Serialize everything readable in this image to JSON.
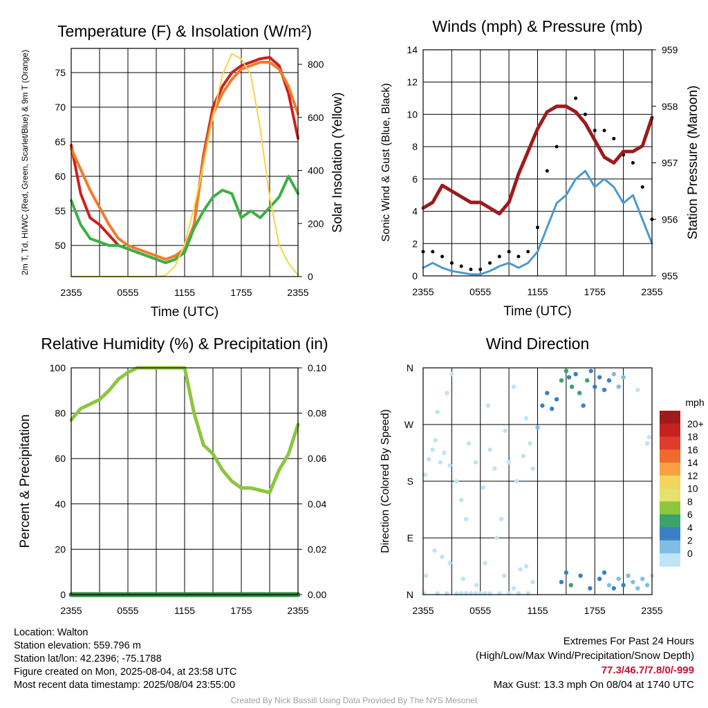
{
  "colors": {
    "red": "#cc1f1f",
    "orange": "#f07c2a",
    "green": "#3cb044",
    "yellow": "#f7d34a",
    "maroon": "#9e1b1b",
    "sonic": "#4b98d2",
    "gust": "#000000",
    "rh": "#8cc63f",
    "precip": "#2e8b3e"
  },
  "chart_data": [
    {
      "type": "line",
      "title": "Temperature (F) & Insolation (W/m²)",
      "xlabel": "Time (UTC)",
      "ylabel": "2m T, Td, HI/WC (Red, Green, Scarlet/Blue) & 9m T (Orange)",
      "y2label": "Solar Insolation (Yellow)",
      "x_ticks": [
        "2355",
        "0555",
        "1155",
        "1755",
        "2355"
      ],
      "ylim": [
        45.5,
        78.5
      ],
      "y_ticks": [
        50,
        55,
        60,
        65,
        70,
        75
      ],
      "y2lim": [
        0,
        860
      ],
      "y2_ticks": [
        0,
        200,
        400,
        600,
        800
      ],
      "grid": true,
      "series": [
        {
          "name": "2m T",
          "color": "#cc1f1f",
          "axis": "left",
          "x": [
            0,
            1,
            2,
            3,
            4,
            5,
            6,
            7,
            8,
            9,
            10,
            11,
            12,
            13,
            14,
            15,
            16,
            17,
            18,
            19,
            20,
            21,
            22,
            23,
            24
          ],
          "y": [
            64.5,
            57.5,
            54,
            53,
            51.5,
            50,
            49.5,
            49,
            48.5,
            48,
            47.5,
            48,
            49,
            53,
            63,
            70,
            73,
            75,
            76,
            76.5,
            77,
            77.2,
            76,
            72,
            65.5
          ]
        },
        {
          "name": "9m T",
          "color": "#f07c2a",
          "axis": "left",
          "x": [
            0,
            1,
            2,
            3,
            4,
            5,
            6,
            7,
            8,
            9,
            10,
            11,
            12,
            13,
            14,
            15,
            16,
            17,
            18,
            19,
            20,
            21,
            22,
            23,
            24
          ],
          "y": [
            64,
            61,
            58,
            55.5,
            53,
            51,
            50,
            49.5,
            49,
            48.5,
            48,
            48.5,
            49.5,
            53,
            62.5,
            69,
            72,
            74,
            75.5,
            76,
            76.5,
            76.5,
            75.5,
            73,
            69
          ]
        },
        {
          "name": "2m Td",
          "color": "#3cb044",
          "axis": "left",
          "x": [
            0,
            1,
            2,
            3,
            4,
            5,
            6,
            7,
            8,
            9,
            10,
            11,
            12,
            13,
            14,
            15,
            16,
            17,
            18,
            19,
            20,
            21,
            22,
            23,
            24
          ],
          "y": [
            56.5,
            53,
            51,
            50.5,
            50,
            50,
            49.5,
            49,
            48.5,
            48,
            47.5,
            48,
            49,
            52.5,
            55,
            57,
            58,
            57.5,
            54,
            55,
            54,
            55.5,
            57,
            60,
            57.5
          ]
        },
        {
          "name": "Solar Insolation",
          "color": "#f7d34a",
          "axis": "right",
          "x": [
            0,
            1,
            2,
            3,
            4,
            5,
            6,
            7,
            8,
            9,
            10,
            11,
            12,
            13,
            14,
            15,
            16,
            17,
            18,
            19,
            20,
            21,
            22,
            23,
            24
          ],
          "y": [
            0,
            0,
            0,
            0,
            0,
            0,
            0,
            0,
            0,
            0,
            5,
            40,
            120,
            260,
            420,
            600,
            760,
            840,
            820,
            760,
            560,
            300,
            120,
            50,
            5
          ]
        }
      ]
    },
    {
      "type": "line",
      "title": "Winds (mph) & Pressure (mb)",
      "xlabel": "Time (UTC)",
      "ylabel": "Sonic Wind & Gust (Blue, Black)",
      "y2label": "Station Pressure (Maroon)",
      "x_ticks": [
        "2355",
        "0555",
        "1155",
        "1755",
        "2355"
      ],
      "ylim": [
        0,
        14
      ],
      "y_ticks": [
        0,
        2,
        4,
        6,
        8,
        10,
        12,
        14
      ],
      "y2lim": [
        955,
        959
      ],
      "y2_ticks": [
        955,
        956,
        957,
        958,
        959
      ],
      "grid": true,
      "series": [
        {
          "name": "Sonic Wind",
          "color": "#4b98d2",
          "axis": "left",
          "x": [
            0,
            1,
            2,
            3,
            4,
            5,
            6,
            7,
            8,
            9,
            10,
            11,
            12,
            13,
            14,
            15,
            16,
            17,
            18,
            19,
            20,
            21,
            22,
            23,
            24
          ],
          "y": [
            0.5,
            0.8,
            0.5,
            0.3,
            0.2,
            0.1,
            0.1,
            0.3,
            0.6,
            0.8,
            0.5,
            0.8,
            1.5,
            3,
            4.5,
            5,
            6,
            6.5,
            5.5,
            6,
            5.5,
            4.5,
            5,
            3.5,
            2
          ]
        },
        {
          "name": "Gust",
          "color": "#000000",
          "axis": "left",
          "type": "scatter",
          "x": [
            0,
            1,
            2,
            3,
            4,
            5,
            6,
            7,
            8,
            9,
            10,
            11,
            12,
            13,
            14,
            15,
            16,
            17,
            18,
            19,
            20,
            21,
            22,
            23,
            24
          ],
          "y": [
            1.5,
            1.5,
            1.2,
            0.8,
            0.6,
            0.4,
            0.4,
            0.8,
            1.2,
            1.5,
            1.2,
            1.5,
            3,
            6.5,
            8,
            10.5,
            11,
            10,
            9,
            9,
            8.5,
            7.5,
            7,
            5.5,
            3.5
          ]
        },
        {
          "name": "Station Pressure",
          "color": "#9e1b1b",
          "axis": "right",
          "x": [
            0,
            1,
            2,
            3,
            4,
            5,
            6,
            7,
            8,
            9,
            10,
            11,
            12,
            13,
            14,
            15,
            16,
            17,
            18,
            19,
            20,
            21,
            22,
            23,
            24
          ],
          "y": [
            956.2,
            956.3,
            956.6,
            956.5,
            956.4,
            956.3,
            956.3,
            956.2,
            956.1,
            956.3,
            956.8,
            957.2,
            957.6,
            957.9,
            958.0,
            958.0,
            957.9,
            957.7,
            957.4,
            957.1,
            957.0,
            957.2,
            957.2,
            957.3,
            957.8
          ]
        }
      ]
    },
    {
      "type": "line",
      "title": "Relative Humidity (%) & Precipitation (in)",
      "xlabel": "",
      "ylabel": "Percent & Precipitation",
      "x_ticks": [
        "2355",
        "0555",
        "1155",
        "1755",
        "2355"
      ],
      "ylim": [
        0,
        100
      ],
      "y_ticks": [
        0,
        20,
        40,
        60,
        80,
        100
      ],
      "y2lim": [
        0,
        0.1
      ],
      "y2_ticks": [
        "0.00",
        "0.02",
        "0.04",
        "0.06",
        "0.08",
        "0.10"
      ],
      "grid": true,
      "series": [
        {
          "name": "Relative Humidity",
          "color": "#8cc63f",
          "axis": "left",
          "x": [
            0,
            1,
            2,
            3,
            4,
            5,
            6,
            7,
            8,
            9,
            10,
            11,
            12,
            13,
            14,
            15,
            16,
            17,
            18,
            19,
            20,
            21,
            22,
            23,
            24
          ],
          "y": [
            77,
            82,
            84,
            86,
            90,
            95,
            98,
            100,
            100,
            100,
            100,
            100,
            100,
            80,
            66,
            62,
            55,
            50,
            47,
            47,
            46,
            45,
            55,
            62,
            75
          ]
        },
        {
          "name": "Precipitation",
          "color": "#2e8b3e",
          "axis": "right",
          "x": [
            0,
            24
          ],
          "y": [
            0,
            0
          ]
        }
      ]
    },
    {
      "type": "scatter",
      "title": "Wind Direction",
      "ylabel": "Direction (Colored By Speed)",
      "x_ticks": [
        "2355",
        "0555",
        "1155",
        "1755",
        "2355"
      ],
      "y_ticks": [
        "N",
        "E",
        "S",
        "W",
        "N"
      ],
      "ylim": [
        0,
        360
      ],
      "colorbar": {
        "title": "mph",
        "labels": [
          "20+",
          "18",
          "16",
          "14",
          "12",
          "10",
          "8",
          "6",
          "4",
          "2",
          "0"
        ],
        "colors": [
          "#9e1b1b",
          "#c4211f",
          "#e23b2c",
          "#f06a2c",
          "#f7a044",
          "#f1d65a",
          "#e3e26c",
          "#8cc63f",
          "#3aa36b",
          "#3b7fc4",
          "#7fbde6",
          "#bfe3f7"
        ]
      },
      "points": [
        {
          "x": 0.1,
          "y": 2,
          "s": 1
        },
        {
          "x": 1.5,
          "y": 2,
          "s": 1
        },
        {
          "x": 2.5,
          "y": 2,
          "s": 1
        },
        {
          "x": 3.5,
          "y": 2,
          "s": 1
        },
        {
          "x": 4.0,
          "y": 2,
          "s": 0.5
        },
        {
          "x": 4.5,
          "y": 2,
          "s": 1
        },
        {
          "x": 5.0,
          "y": 2,
          "s": 0.5
        },
        {
          "x": 5.5,
          "y": 2,
          "s": 1
        },
        {
          "x": 6.0,
          "y": 2,
          "s": 1
        },
        {
          "x": 6.5,
          "y": 2,
          "s": 1
        },
        {
          "x": 7.0,
          "y": 2,
          "s": 1
        },
        {
          "x": 8.0,
          "y": 2,
          "s": 1
        },
        {
          "x": 9.0,
          "y": 2,
          "s": 1
        },
        {
          "x": 10.0,
          "y": 2,
          "s": 1
        },
        {
          "x": 11.0,
          "y": 2,
          "s": 1
        },
        {
          "x": 0.3,
          "y": 30,
          "s": 1
        },
        {
          "x": 1.2,
          "y": 70,
          "s": 1
        },
        {
          "x": 2.0,
          "y": 60,
          "s": 1
        },
        {
          "x": 2.8,
          "y": 50,
          "s": 1
        },
        {
          "x": 4.2,
          "y": 25,
          "s": 1
        },
        {
          "x": 5.6,
          "y": 15,
          "s": 1
        },
        {
          "x": 6.5,
          "y": 50,
          "s": 1
        },
        {
          "x": 7.7,
          "y": 90,
          "s": 1
        },
        {
          "x": 8.5,
          "y": 30,
          "s": 1
        },
        {
          "x": 9.5,
          "y": 10,
          "s": 1
        },
        {
          "x": 10.2,
          "y": 40,
          "s": 1.5
        },
        {
          "x": 10.8,
          "y": 45,
          "s": 1.5
        },
        {
          "x": 11.5,
          "y": 20,
          "s": 1
        },
        {
          "x": 0.2,
          "y": 190,
          "s": 1
        },
        {
          "x": 0.6,
          "y": 215,
          "s": 1
        },
        {
          "x": 1.0,
          "y": 230,
          "s": 1
        },
        {
          "x": 1.3,
          "y": 245,
          "s": 1
        },
        {
          "x": 1.8,
          "y": 210,
          "s": 1
        },
        {
          "x": 2.2,
          "y": 225,
          "s": 1
        },
        {
          "x": 2.8,
          "y": 205,
          "s": 1
        },
        {
          "x": 3.5,
          "y": 180,
          "s": 1
        },
        {
          "x": 4.0,
          "y": 150,
          "s": 1
        },
        {
          "x": 4.5,
          "y": 120,
          "s": 1
        },
        {
          "x": 4.8,
          "y": 240,
          "s": 1
        },
        {
          "x": 5.5,
          "y": 210,
          "s": 1
        },
        {
          "x": 6.3,
          "y": 170,
          "s": 1
        },
        {
          "x": 7.0,
          "y": 230,
          "s": 1
        },
        {
          "x": 7.5,
          "y": 200,
          "s": 1
        },
        {
          "x": 8.2,
          "y": 120,
          "s": 1
        },
        {
          "x": 8.6,
          "y": 260,
          "s": 1
        },
        {
          "x": 9.0,
          "y": 210,
          "s": 1
        },
        {
          "x": 9.8,
          "y": 180,
          "s": 1
        },
        {
          "x": 10.5,
          "y": 220,
          "s": 1
        },
        {
          "x": 11.2,
          "y": 240,
          "s": 1
        },
        {
          "x": 11.5,
          "y": 200,
          "s": 1
        },
        {
          "x": 1.5,
          "y": 290,
          "s": 1
        },
        {
          "x": 2.5,
          "y": 320,
          "s": 1
        },
        {
          "x": 3.0,
          "y": 350,
          "s": 1
        },
        {
          "x": 6.8,
          "y": 300,
          "s": 1
        },
        {
          "x": 9.5,
          "y": 330,
          "s": 1
        },
        {
          "x": 10.8,
          "y": 280,
          "s": 1
        },
        {
          "x": 12.0,
          "y": 265,
          "s": 2.5
        },
        {
          "x": 12.5,
          "y": 300,
          "s": 4
        },
        {
          "x": 13.0,
          "y": 320,
          "s": 4
        },
        {
          "x": 13.5,
          "y": 295,
          "s": 5
        },
        {
          "x": 14.0,
          "y": 310,
          "s": 4
        },
        {
          "x": 14.5,
          "y": 340,
          "s": 6
        },
        {
          "x": 15.0,
          "y": 355,
          "s": 6
        },
        {
          "x": 15.3,
          "y": 345,
          "s": 4
        },
        {
          "x": 15.6,
          "y": 330,
          "s": 7
        },
        {
          "x": 16.0,
          "y": 350,
          "s": 4
        },
        {
          "x": 16.4,
          "y": 320,
          "s": 6
        },
        {
          "x": 16.8,
          "y": 300,
          "s": 5
        },
        {
          "x": 17.2,
          "y": 340,
          "s": 6
        },
        {
          "x": 17.6,
          "y": 355,
          "s": 4
        },
        {
          "x": 18.0,
          "y": 330,
          "s": 4
        },
        {
          "x": 18.5,
          "y": 345,
          "s": 5
        },
        {
          "x": 19.0,
          "y": 325,
          "s": 4
        },
        {
          "x": 19.5,
          "y": 340,
          "s": 4
        },
        {
          "x": 20.0,
          "y": 350,
          "s": 3
        },
        {
          "x": 20.5,
          "y": 330,
          "s": 2.5
        },
        {
          "x": 21.0,
          "y": 345,
          "s": 3
        },
        {
          "x": 22.5,
          "y": 325,
          "s": 1
        },
        {
          "x": 23.5,
          "y": 240,
          "s": 1
        },
        {
          "x": 23.7,
          "y": 250,
          "s": 1
        },
        {
          "x": 14.5,
          "y": 20,
          "s": 4
        },
        {
          "x": 15.0,
          "y": 35,
          "s": 5
        },
        {
          "x": 15.5,
          "y": 15,
          "s": 6
        },
        {
          "x": 16.5,
          "y": 30,
          "s": 4
        },
        {
          "x": 17.5,
          "y": 10,
          "s": 4
        },
        {
          "x": 18.5,
          "y": 25,
          "s": 4
        },
        {
          "x": 19.0,
          "y": 35,
          "s": 4
        },
        {
          "x": 19.5,
          "y": 15,
          "s": 2.5
        },
        {
          "x": 20.0,
          "y": 10,
          "s": 4
        },
        {
          "x": 20.5,
          "y": 25,
          "s": 3
        },
        {
          "x": 21.0,
          "y": 15,
          "s": 4
        },
        {
          "x": 21.5,
          "y": 30,
          "s": 2.5
        },
        {
          "x": 22.0,
          "y": 20,
          "s": 3
        },
        {
          "x": 22.5,
          "y": 10,
          "s": 3
        },
        {
          "x": 23.0,
          "y": 25,
          "s": 2.5
        },
        {
          "x": 23.5,
          "y": 15,
          "s": 2
        },
        {
          "x": 24.0,
          "y": 30,
          "s": 1
        }
      ]
    }
  ],
  "footer": {
    "location": "Location: Walton",
    "elevation": "Station elevation: 559.796 m",
    "latlon": "Station lat/lon: 42.2396; -75.1788",
    "created": "Figure created on Mon, 2025-08-04, at 23:58 UTC",
    "recent": "Most recent data timestamp: 2025/08/04 23:55:00",
    "extremes_title": "Extremes For Past 24 Hours",
    "extremes_sub": "(High/Low/Max Wind/Precipitation/Snow Depth)",
    "extremes_values": "77.3/46.7/7.8/0/-999",
    "max_gust": "Max Gust: 13.3 mph On 08/04 at 1740 UTC",
    "credit": "Created By Nick Bassill Using Data Provided By The NYS Mesonet"
  }
}
